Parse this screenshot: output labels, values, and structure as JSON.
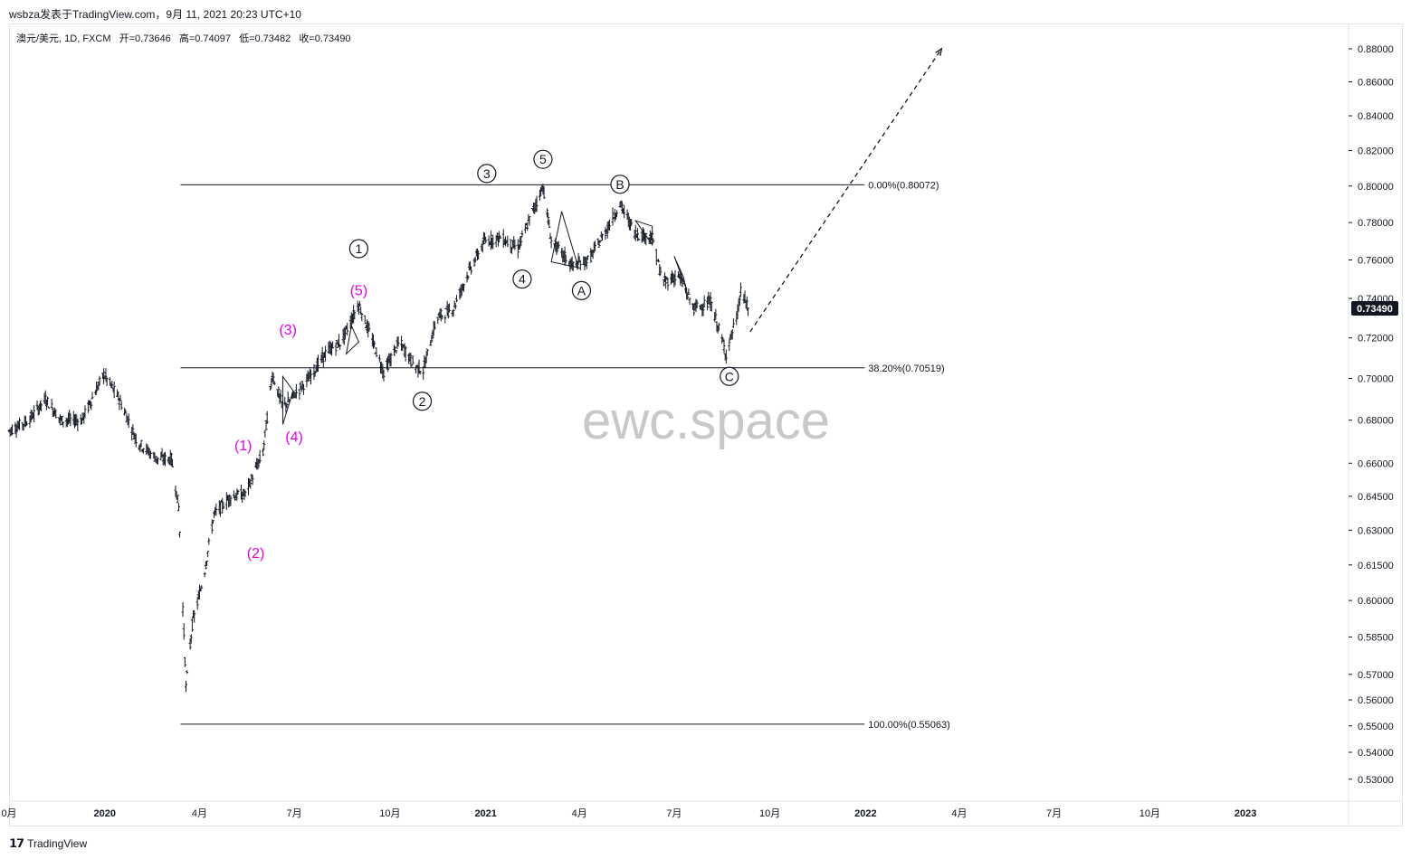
{
  "header": {
    "credit": "wsbza发表于TradingView.com，9月 11, 2021 20:23 UTC+10"
  },
  "symbol_info": {
    "symbol": "澳元/美元, 1D, FXCM",
    "open": "开=0.73646",
    "high": "高=0.74097",
    "low": "低=0.73482",
    "close": "收=0.73490"
  },
  "footer": {
    "brand": "TradingView"
  },
  "colors": {
    "candles": "#131722",
    "fib_line": "#131722",
    "wave_magenta": "#e600e6",
    "watermark": "#c8c8c8",
    "price_tag_bg": "#131722",
    "price_tag_text": "#ffffff"
  },
  "chart_data": {
    "type": "candlestick",
    "title": "",
    "watermark": "ewc.space",
    "price_scale": "log",
    "y_ticks": [
      0.88,
      0.86,
      0.84,
      0.82,
      0.8,
      0.78,
      0.76,
      0.74,
      0.72,
      0.7,
      0.68,
      0.66,
      0.645,
      0.63,
      0.615,
      0.6,
      0.585,
      0.57,
      0.56,
      0.55,
      0.54,
      0.53
    ],
    "y_tick_labels": [
      "0.88000",
      "0.86000",
      "0.84000",
      "0.82000",
      "0.80000",
      "0.78000",
      "0.76000",
      "0.74000",
      "0.72000",
      "0.70000",
      "0.68000",
      "0.66000",
      "0.64500",
      "0.63000",
      "0.61500",
      "0.60000",
      "0.58500",
      "0.57000",
      "0.56000",
      "0.55000",
      "0.54000",
      "0.53000"
    ],
    "ylim": [
      0.522,
      0.895
    ],
    "x_ticks": [
      {
        "date": "2019-10-01",
        "label": "0月"
      },
      {
        "date": "2020-01-01",
        "label": "2020"
      },
      {
        "date": "2020-04-01",
        "label": "4月"
      },
      {
        "date": "2020-07-01",
        "label": "7月"
      },
      {
        "date": "2020-10-01",
        "label": "10月"
      },
      {
        "date": "2021-01-01",
        "label": "2021"
      },
      {
        "date": "2021-04-01",
        "label": "4月"
      },
      {
        "date": "2021-07-01",
        "label": "7月"
      },
      {
        "date": "2021-10-01",
        "label": "10月"
      },
      {
        "date": "2022-01-01",
        "label": "2022"
      },
      {
        "date": "2022-04-01",
        "label": "4月"
      },
      {
        "date": "2022-07-01",
        "label": "7月"
      },
      {
        "date": "2022-10-01",
        "label": "10月"
      },
      {
        "date": "2023-01-01",
        "label": "2023"
      }
    ],
    "xlim": [
      "2019-10-01",
      "2023-04-10"
    ],
    "last_price": 0.7349,
    "last_price_label": "0.73490",
    "price_path": [
      [
        "2019-10-01",
        0.675
      ],
      [
        "2019-10-20",
        0.68
      ],
      [
        "2019-11-05",
        0.69
      ],
      [
        "2019-11-20",
        0.68
      ],
      [
        "2019-12-10",
        0.68
      ],
      [
        "2019-12-31",
        0.702
      ],
      [
        "2020-01-15",
        0.69
      ],
      [
        "2020-02-01",
        0.67
      ],
      [
        "2020-02-20",
        0.662
      ],
      [
        "2020-03-05",
        0.662
      ],
      [
        "2020-03-12",
        0.64
      ],
      [
        "2020-03-19",
        0.565
      ],
      [
        "2020-03-25",
        0.59
      ],
      [
        "2020-04-05",
        0.61
      ],
      [
        "2020-04-15",
        0.637
      ],
      [
        "2020-05-01",
        0.645
      ],
      [
        "2020-05-15",
        0.646
      ],
      [
        "2020-06-01",
        0.665
      ],
      [
        "2020-06-10",
        0.702
      ],
      [
        "2020-06-20",
        0.686
      ],
      [
        "2020-07-01",
        0.692
      ],
      [
        "2020-07-15",
        0.7
      ],
      [
        "2020-08-01",
        0.713
      ],
      [
        "2020-08-15",
        0.718
      ],
      [
        "2020-09-01",
        0.737
      ],
      [
        "2020-09-25",
        0.703
      ],
      [
        "2020-10-10",
        0.718
      ],
      [
        "2020-10-25",
        0.706
      ],
      [
        "2020-11-02",
        0.704
      ],
      [
        "2020-11-15",
        0.73
      ],
      [
        "2020-12-01",
        0.735
      ],
      [
        "2020-12-15",
        0.753
      ],
      [
        "2020-12-31",
        0.77
      ],
      [
        "2021-01-15",
        0.772
      ],
      [
        "2021-02-01",
        0.766
      ],
      [
        "2021-02-25",
        0.8
      ],
      [
        "2021-03-05",
        0.77
      ],
      [
        "2021-03-25",
        0.757
      ],
      [
        "2021-04-10",
        0.76
      ],
      [
        "2021-04-25",
        0.774
      ],
      [
        "2021-05-10",
        0.79
      ],
      [
        "2021-05-25",
        0.774
      ],
      [
        "2021-06-10",
        0.772
      ],
      [
        "2021-06-20",
        0.748
      ],
      [
        "2021-07-05",
        0.752
      ],
      [
        "2021-07-20",
        0.735
      ],
      [
        "2021-08-05",
        0.738
      ],
      [
        "2021-08-20",
        0.712
      ],
      [
        "2021-08-31",
        0.732
      ],
      [
        "2021-09-03",
        0.744
      ],
      [
        "2021-09-10",
        0.7349
      ]
    ],
    "fibonacci": {
      "levels": [
        {
          "label": "0.00%(0.80072)",
          "price": 0.80072,
          "from": "2020-03-19"
        },
        {
          "label": "38.20%(0.70519)",
          "price": 0.70519,
          "from": "2020-03-19"
        },
        {
          "label": "100.00%(0.55063)",
          "price": 0.55063,
          "from": "2020-03-19"
        }
      ],
      "to": "2021-12-31"
    },
    "projection": {
      "from": {
        "date": "2021-09-12",
        "price": 0.723
      },
      "to": {
        "date": "2022-03-15",
        "price": 0.88
      }
    },
    "wave_labels_primary": [
      {
        "text": "1",
        "date": "2020-09-01",
        "price": 0.766,
        "circled": true
      },
      {
        "text": "2",
        "date": "2020-11-01",
        "price": 0.689,
        "circled": true
      },
      {
        "text": "3",
        "date": "2021-01-02",
        "price": 0.807,
        "circled": true
      },
      {
        "text": "4",
        "date": "2021-02-05",
        "price": 0.75,
        "circled": true
      },
      {
        "text": "5",
        "date": "2021-02-25",
        "price": 0.815,
        "circled": true
      },
      {
        "text": "A",
        "date": "2021-04-03",
        "price": 0.744,
        "circled": true
      },
      {
        "text": "B",
        "date": "2021-05-10",
        "price": 0.801,
        "circled": true
      },
      {
        "text": "C",
        "date": "2021-08-23",
        "price": 0.701,
        "circled": true
      }
    ],
    "wave_labels_minor": [
      {
        "text": "(1)",
        "date": "2020-05-13",
        "price": 0.668
      },
      {
        "text": "(2)",
        "date": "2020-05-25",
        "price": 0.62
      },
      {
        "text": "(3)",
        "date": "2020-06-25",
        "price": 0.724
      },
      {
        "text": "(4)",
        "date": "2020-07-01",
        "price": 0.672
      },
      {
        "text": "(5)",
        "date": "2020-09-01",
        "price": 0.744
      }
    ],
    "triangles": [
      [
        [
          "2020-06-20",
          0.701
        ],
        [
          "2020-06-30",
          0.694
        ],
        [
          "2020-06-20",
          0.678
        ]
      ],
      [
        [
          "2020-08-20",
          0.712
        ],
        [
          "2020-09-01",
          0.718
        ],
        [
          "2020-08-25",
          0.726
        ]
      ],
      [
        [
          "2021-03-05",
          0.759
        ],
        [
          "2021-03-15",
          0.786
        ],
        [
          "2021-03-31",
          0.756
        ]
      ],
      [
        [
          "2021-05-25",
          0.781
        ],
        [
          "2021-06-10",
          0.778
        ],
        [
          "2021-06-10",
          0.768
        ]
      ],
      [
        [
          "2021-07-01",
          0.762
        ],
        [
          "2021-07-10",
          0.751
        ],
        [
          "2021-07-12",
          0.746
        ]
      ]
    ]
  }
}
